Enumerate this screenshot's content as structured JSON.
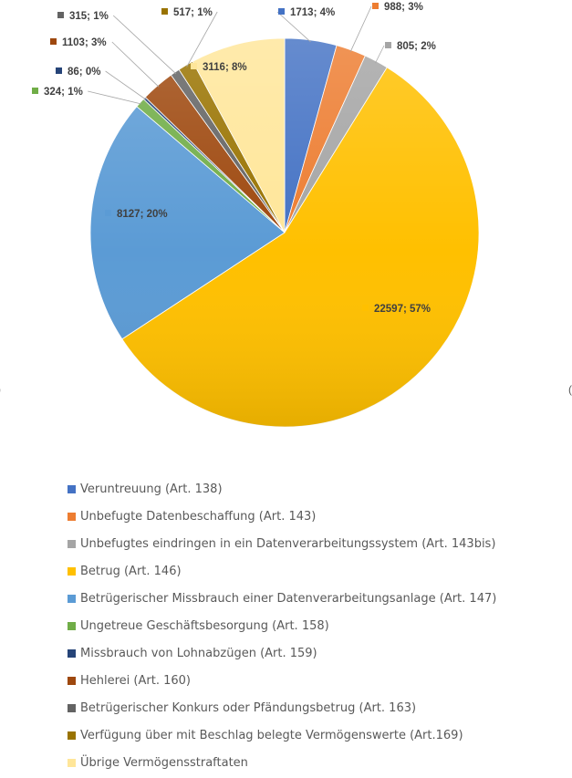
{
  "chart_data": {
    "type": "pie",
    "title": "",
    "legend_position": "bottom",
    "series": [
      {
        "categories": [
          "Veruntreuung (Art. 138)",
          "Unbefugte Datenbeschaffung (Art. 143)",
          "Unbefugtes eindringen in ein Datenverarbeitungssystem (Art. 143bis)",
          "Betrug (Art. 146)",
          "Betrügerischer Missbrauch einer Datenverarbeitungsanlage (Art. 147)",
          "Ungetreue Geschäftsbesorgung (Art. 158)",
          "Missbrauch von Lohnabzügen (Art. 159)",
          "Hehlerei (Art. 160)",
          "Betrügerischer Konkurs oder Pfändungsbetrug (Art. 163)",
          "Verfügung über mit Beschlag belegte Vermögenswerte (Art.169)",
          "Übrige Vermögensstraftaten"
        ],
        "values": [
          1713,
          988,
          805,
          22597,
          8127,
          324,
          86,
          1103,
          315,
          517,
          3116
        ],
        "percent_labels": [
          "4%",
          "3%",
          "2%",
          "57%",
          "20%",
          "1%",
          "0%",
          "3%",
          "1%",
          "1%",
          "8%"
        ],
        "data_labels": [
          "1713; 4%",
          "988; 3%",
          "805; 2%",
          "22597; 57%",
          "8127; 20%",
          "324; 1%",
          "86; 0%",
          "1103; 3%",
          "315; 1%",
          "517; 1%",
          "3116; 8%"
        ],
        "colors": [
          "#4472C4",
          "#ED7D31",
          "#A5A5A5",
          "#FFC000",
          "#5B9BD5",
          "#70AD47",
          "#264478",
          "#9E480E",
          "#636363",
          "#997300",
          "#FFE699"
        ]
      }
    ]
  }
}
